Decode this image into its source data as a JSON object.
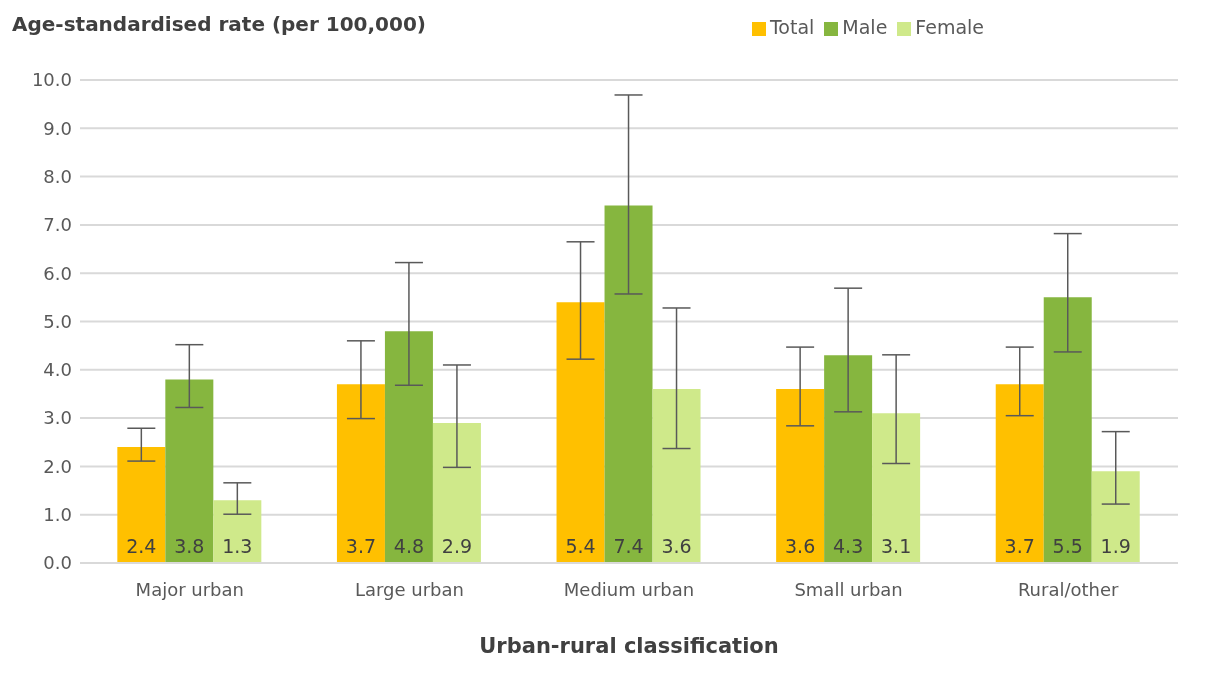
{
  "chart_data": {
    "type": "bar",
    "ylabel": "Age-standardised rate (per 100,000)",
    "xlabel": "Urban-rural classification",
    "categories": [
      "Major urban",
      "Large urban",
      "Medium urban",
      "Small urban",
      "Rural/other"
    ],
    "series": [
      {
        "name": "Total",
        "color": "#ffc000",
        "values": [
          2.4,
          3.7,
          5.4,
          3.6,
          3.7
        ],
        "errors": [
          [
            2.11,
            2.79
          ],
          [
            2.99,
            4.6
          ],
          [
            4.22,
            6.65
          ],
          [
            2.84,
            4.47
          ],
          [
            3.05,
            4.47
          ]
        ]
      },
      {
        "name": "Male",
        "color": "#86b63f",
        "values": [
          3.8,
          4.8,
          7.4,
          4.3,
          5.5
        ],
        "errors": [
          [
            3.22,
            4.52
          ],
          [
            3.68,
            6.22
          ],
          [
            5.57,
            9.69
          ],
          [
            3.13,
            5.69
          ],
          [
            4.37,
            6.82
          ]
        ]
      },
      {
        "name": "Female",
        "color": "#cfe98a",
        "values": [
          1.3,
          2.9,
          3.6,
          3.1,
          1.9
        ],
        "errors": [
          [
            1.01,
            1.66
          ],
          [
            1.98,
            4.1
          ],
          [
            2.37,
            5.28
          ],
          [
            2.06,
            4.31
          ],
          [
            1.22,
            2.72
          ]
        ]
      }
    ],
    "ylim": [
      0,
      10
    ],
    "yticks": [
      {
        "value": 0,
        "label": "0.0"
      },
      {
        "value": 1,
        "label": "1.0"
      },
      {
        "value": 2,
        "label": "2.0"
      },
      {
        "value": 3,
        "label": "3.0"
      },
      {
        "value": 4,
        "label": "4.0"
      },
      {
        "value": 5,
        "label": "5.0"
      },
      {
        "value": 6,
        "label": "6.0"
      },
      {
        "value": 7,
        "label": "7.0"
      },
      {
        "value": 8,
        "label": "8.0"
      },
      {
        "value": 9,
        "label": "9.0"
      },
      {
        "value": 10,
        "label": "10.0"
      }
    ],
    "grid": "y",
    "legend": "top",
    "data_labels": true
  }
}
